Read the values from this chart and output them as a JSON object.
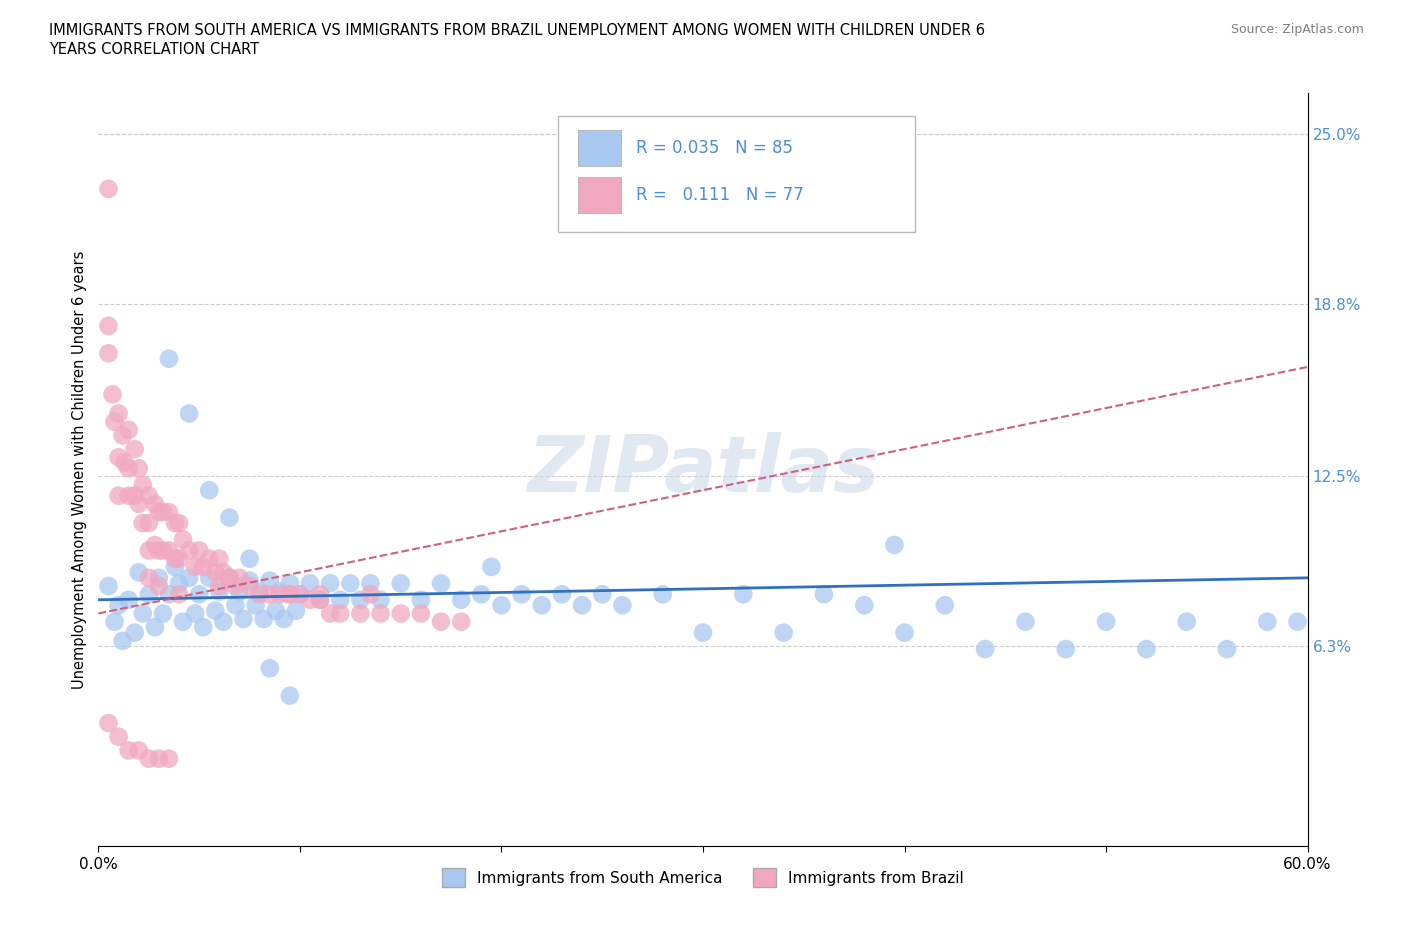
{
  "title_line1": "IMMIGRANTS FROM SOUTH AMERICA VS IMMIGRANTS FROM BRAZIL UNEMPLOYMENT AMONG WOMEN WITH CHILDREN UNDER 6",
  "title_line2": "YEARS CORRELATION CHART",
  "source": "Source: ZipAtlas.com",
  "legend_label1": "Immigrants from South America",
  "legend_label2": "Immigrants from Brazil",
  "R1": 0.035,
  "N1": 85,
  "R2": 0.111,
  "N2": 77,
  "color1": "#a8c8f0",
  "color2": "#f0a8c0",
  "trend_color1": "#3070c0",
  "trend_color2": "#d06080",
  "right_tick_color": "#4a90d9",
  "xlim": [
    0.0,
    0.6
  ],
  "ylim": [
    -0.01,
    0.265
  ],
  "right_yticks": [
    0.063,
    0.125,
    0.188,
    0.25
  ],
  "right_ytick_labels": [
    "6.3%",
    "12.5%",
    "18.8%",
    "25.0%"
  ],
  "ylabel": "Unemployment Among Women with Children Under 6 years",
  "watermark": "ZIPatlas",
  "scatter1_x": [
    0.005,
    0.008,
    0.01,
    0.012,
    0.015,
    0.018,
    0.02,
    0.022,
    0.025,
    0.028,
    0.03,
    0.032,
    0.035,
    0.038,
    0.04,
    0.042,
    0.045,
    0.048,
    0.05,
    0.052,
    0.055,
    0.058,
    0.06,
    0.062,
    0.065,
    0.068,
    0.07,
    0.072,
    0.075,
    0.078,
    0.08,
    0.082,
    0.085,
    0.088,
    0.09,
    0.092,
    0.095,
    0.098,
    0.1,
    0.105,
    0.11,
    0.115,
    0.12,
    0.125,
    0.13,
    0.135,
    0.14,
    0.15,
    0.16,
    0.17,
    0.18,
    0.19,
    0.2,
    0.21,
    0.22,
    0.23,
    0.24,
    0.25,
    0.26,
    0.28,
    0.3,
    0.32,
    0.34,
    0.36,
    0.38,
    0.4,
    0.42,
    0.44,
    0.46,
    0.48,
    0.5,
    0.52,
    0.54,
    0.56,
    0.58,
    0.595,
    0.035,
    0.045,
    0.055,
    0.065,
    0.075,
    0.085,
    0.095,
    0.195,
    0.395
  ],
  "scatter1_y": [
    0.085,
    0.072,
    0.078,
    0.065,
    0.08,
    0.068,
    0.09,
    0.075,
    0.082,
    0.07,
    0.088,
    0.075,
    0.082,
    0.092,
    0.086,
    0.072,
    0.088,
    0.075,
    0.082,
    0.07,
    0.088,
    0.076,
    0.083,
    0.072,
    0.088,
    0.078,
    0.083,
    0.073,
    0.087,
    0.078,
    0.083,
    0.073,
    0.087,
    0.076,
    0.083,
    0.073,
    0.086,
    0.076,
    0.082,
    0.086,
    0.08,
    0.086,
    0.08,
    0.086,
    0.08,
    0.086,
    0.08,
    0.086,
    0.08,
    0.086,
    0.08,
    0.082,
    0.078,
    0.082,
    0.078,
    0.082,
    0.078,
    0.082,
    0.078,
    0.082,
    0.068,
    0.082,
    0.068,
    0.082,
    0.078,
    0.068,
    0.078,
    0.062,
    0.072,
    0.062,
    0.072,
    0.062,
    0.072,
    0.062,
    0.072,
    0.072,
    0.168,
    0.148,
    0.12,
    0.11,
    0.095,
    0.055,
    0.045,
    0.092,
    0.1
  ],
  "scatter2_x": [
    0.005,
    0.005,
    0.005,
    0.007,
    0.008,
    0.01,
    0.01,
    0.01,
    0.012,
    0.013,
    0.015,
    0.015,
    0.015,
    0.018,
    0.018,
    0.02,
    0.02,
    0.022,
    0.022,
    0.025,
    0.025,
    0.025,
    0.028,
    0.028,
    0.03,
    0.03,
    0.032,
    0.032,
    0.035,
    0.035,
    0.038,
    0.038,
    0.04,
    0.04,
    0.042,
    0.045,
    0.048,
    0.05,
    0.052,
    0.055,
    0.058,
    0.06,
    0.062,
    0.065,
    0.068,
    0.07,
    0.075,
    0.08,
    0.085,
    0.09,
    0.095,
    0.1,
    0.105,
    0.11,
    0.115,
    0.12,
    0.13,
    0.14,
    0.15,
    0.16,
    0.17,
    0.18,
    0.025,
    0.03,
    0.04,
    0.06,
    0.065,
    0.095,
    0.11,
    0.135,
    0.005,
    0.01,
    0.015,
    0.02,
    0.025,
    0.03,
    0.035
  ],
  "scatter2_y": [
    0.23,
    0.18,
    0.17,
    0.155,
    0.145,
    0.148,
    0.132,
    0.118,
    0.14,
    0.13,
    0.142,
    0.128,
    0.118,
    0.135,
    0.118,
    0.128,
    0.115,
    0.122,
    0.108,
    0.118,
    0.108,
    0.098,
    0.115,
    0.1,
    0.112,
    0.098,
    0.112,
    0.098,
    0.112,
    0.098,
    0.108,
    0.095,
    0.108,
    0.095,
    0.102,
    0.098,
    0.092,
    0.098,
    0.092,
    0.095,
    0.09,
    0.095,
    0.09,
    0.088,
    0.085,
    0.088,
    0.085,
    0.082,
    0.082,
    0.082,
    0.082,
    0.082,
    0.08,
    0.08,
    0.075,
    0.075,
    0.075,
    0.075,
    0.075,
    0.075,
    0.072,
    0.072,
    0.088,
    0.085,
    0.082,
    0.085,
    0.088,
    0.082,
    0.082,
    0.082,
    0.035,
    0.03,
    0.025,
    0.025,
    0.022,
    0.022,
    0.022
  ]
}
